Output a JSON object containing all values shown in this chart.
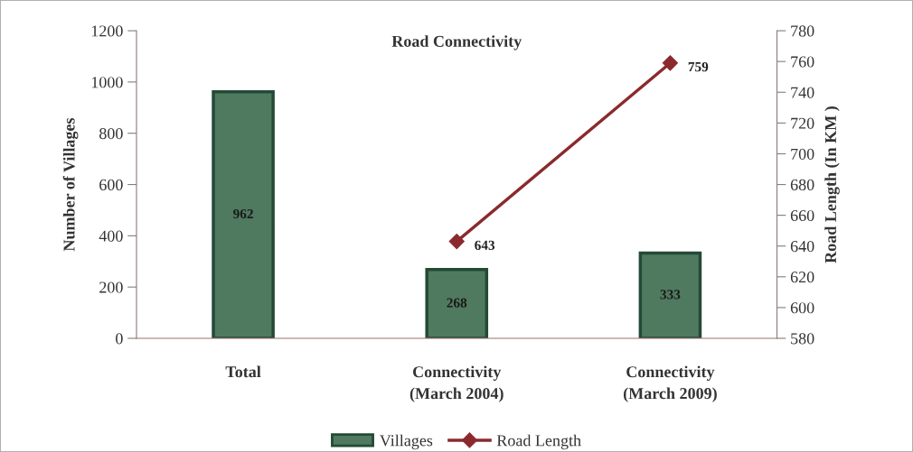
{
  "chart_data": {
    "type": "bar",
    "title": "Road Connectivity",
    "ylabel": "Number of Villages",
    "y2label": "Road Length (In KM )",
    "categories": [
      "Total",
      "Connectivity\n(March 2004)",
      "Connectivity\n(March 2009)"
    ],
    "series": [
      {
        "name": "Villages",
        "color": "#4f7a60",
        "values": [
          962,
          268,
          333
        ]
      },
      {
        "name": "Road Length",
        "type": "line",
        "axis": "y2",
        "color": "#8b2a2e",
        "marker": "diamond",
        "values": [
          null,
          643,
          759
        ]
      }
    ],
    "ylim": [
      0,
      1200
    ],
    "yticks": [
      0,
      200,
      400,
      600,
      800,
      1000,
      1200
    ],
    "y2lim": [
      580,
      780
    ],
    "y2ticks": [
      580,
      600,
      620,
      640,
      660,
      680,
      700,
      720,
      740,
      760,
      780
    ],
    "data_labels": true,
    "legend": "bottom",
    "grid": false
  }
}
